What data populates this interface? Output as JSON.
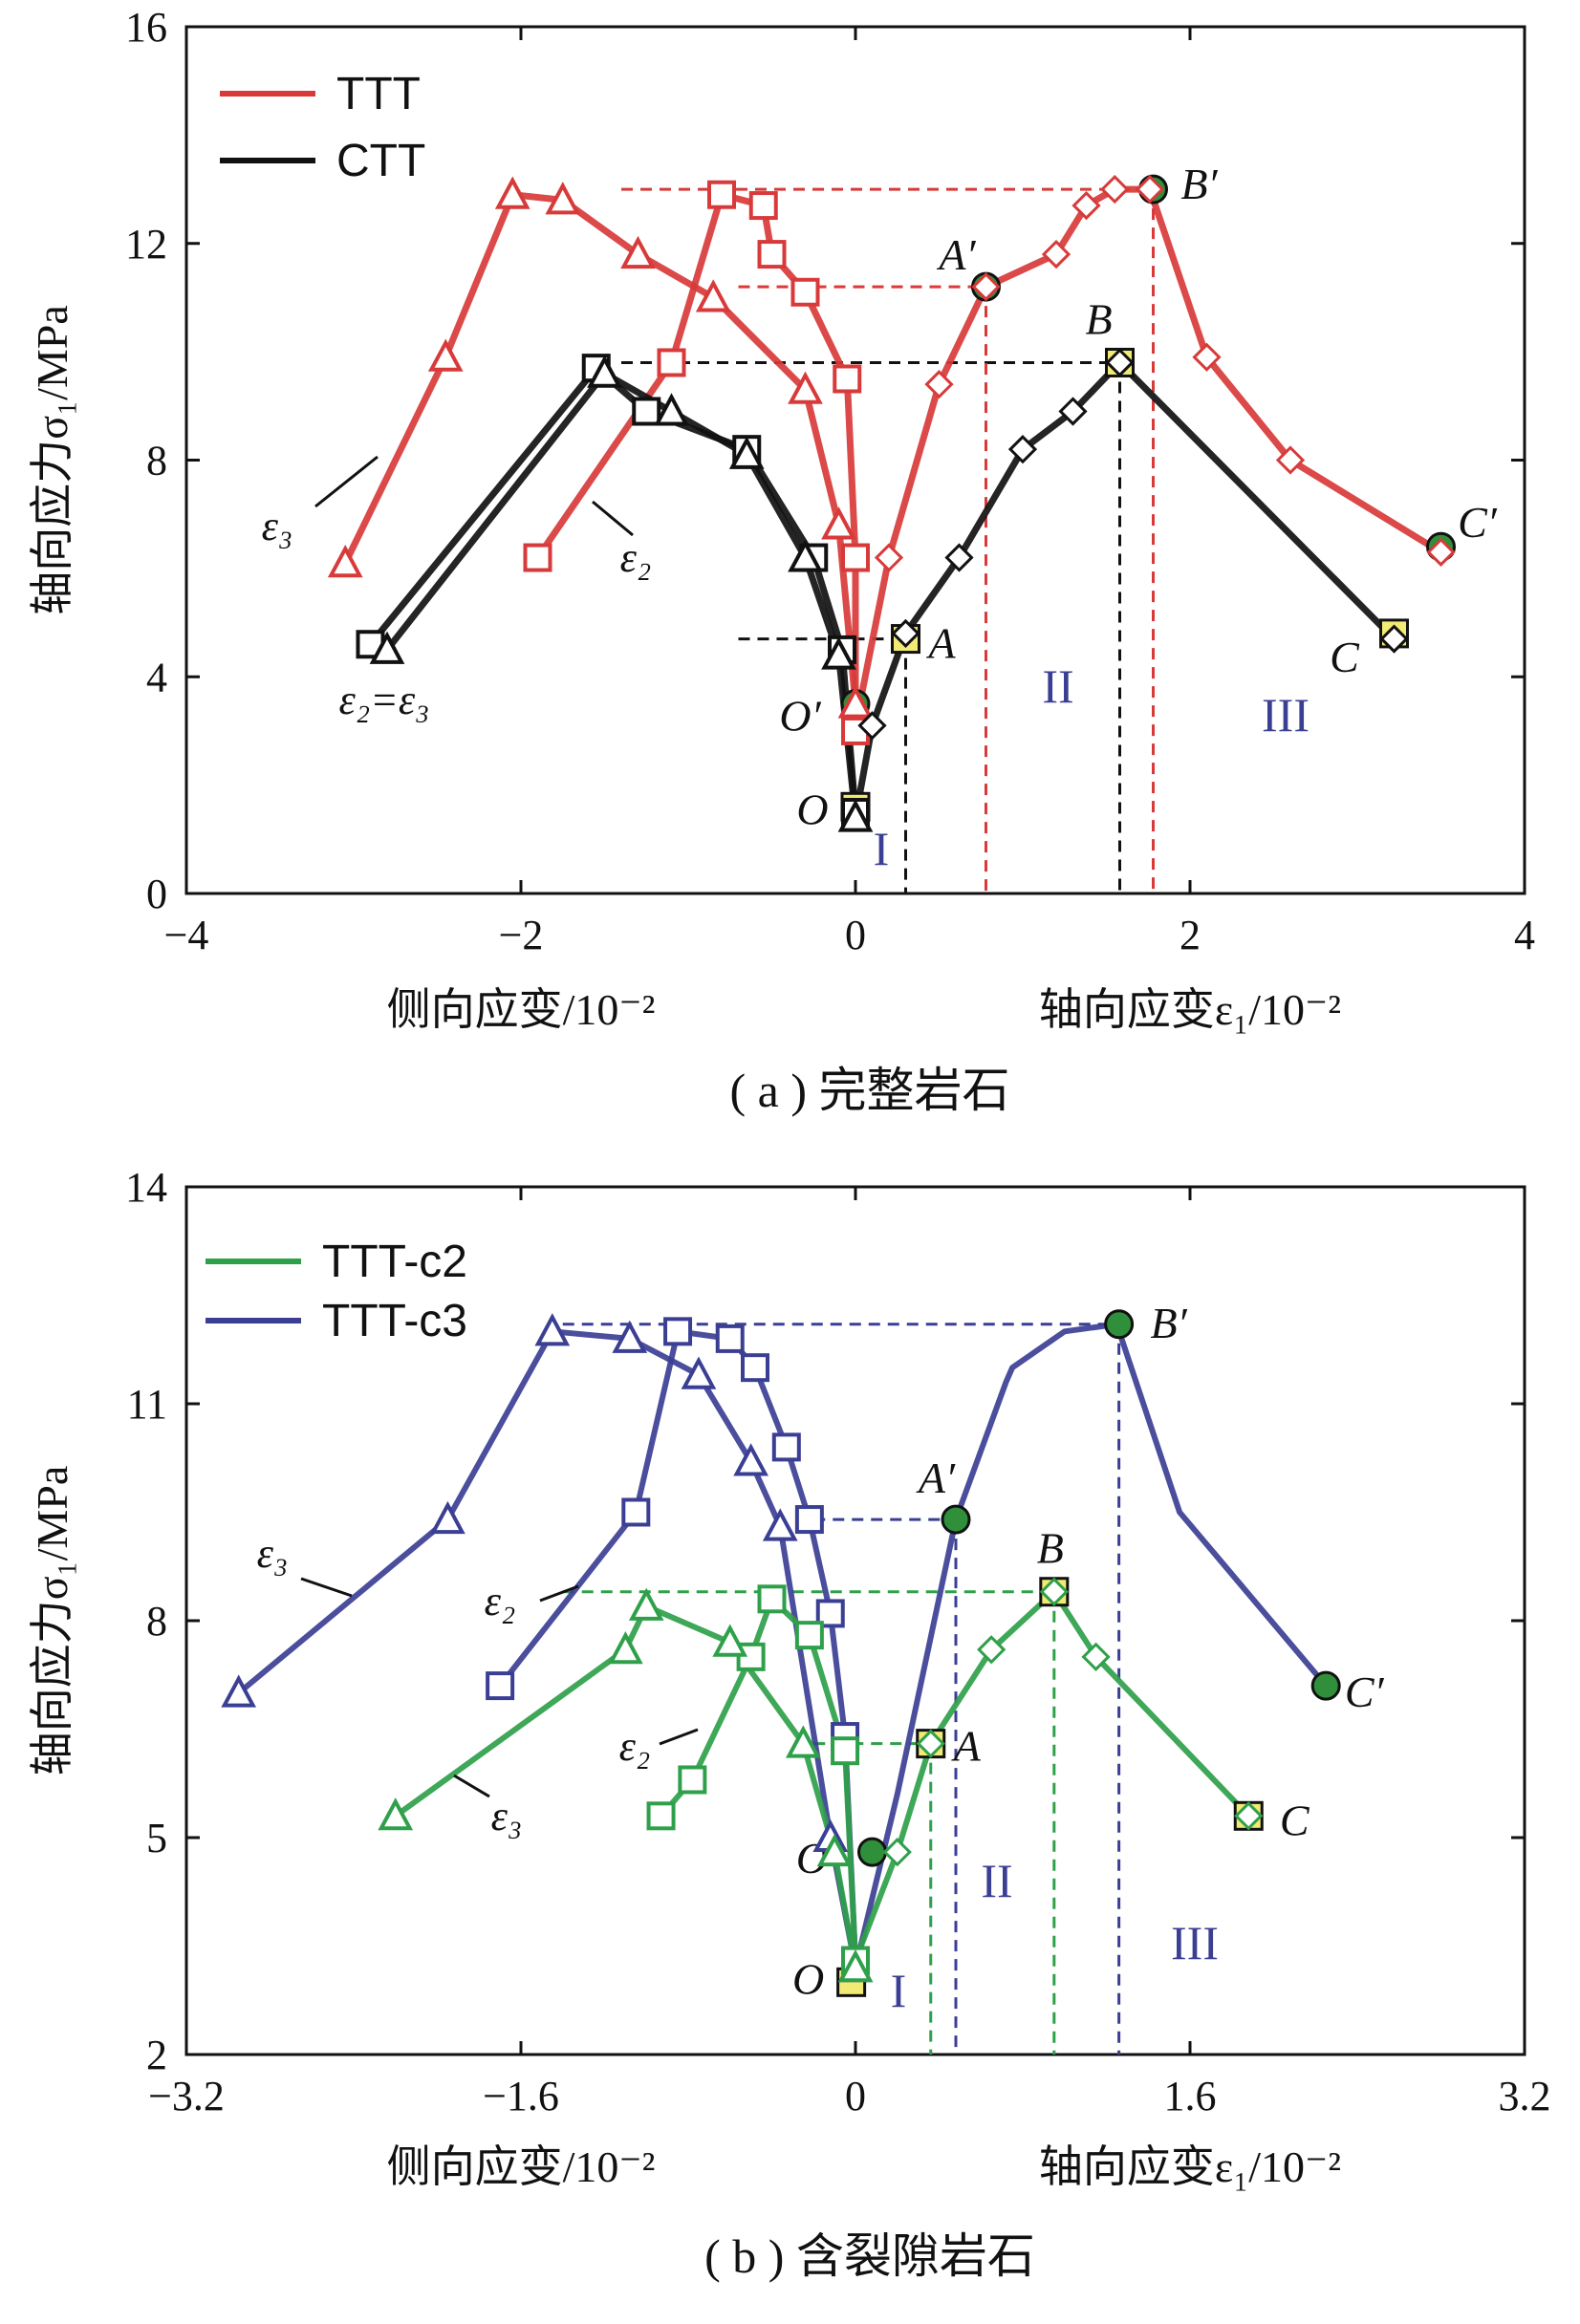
{
  "chart_data": [
    {
      "type": "line",
      "caption": "( a ) 完整岩石",
      "ylabel": "轴向应力σ₁/MPa",
      "xlabel_left": "侧向应变/10⁻²",
      "xlabel_right": "轴向应变ε₁/10⁻²",
      "xlim": [
        -4,
        4
      ],
      "ylim": [
        0,
        16
      ],
      "xticks": [
        -4,
        -2,
        0,
        2,
        4
      ],
      "yticks": [
        0,
        4,
        8,
        12,
        16
      ],
      "xtick_labels": [
        "−4",
        "−2",
        "0",
        "2",
        "4"
      ],
      "ytick_labels": [
        "0",
        "4",
        "8",
        "12",
        "16"
      ],
      "legend": [
        {
          "name": "TTT",
          "color": "#d83a3a"
        },
        {
          "name": "CTT",
          "color": "#111111"
        }
      ],
      "series": [
        {
          "name": "TTT",
          "component": "ε1",
          "color": "#d83a3a",
          "marker": "diamond",
          "x": [
            0.0,
            0.2,
            0.5,
            0.78,
            1.2,
            1.38,
            1.55,
            1.76,
            2.1,
            2.6,
            3.5
          ],
          "y": [
            3.1,
            6.2,
            9.4,
            11.2,
            11.8,
            12.7,
            13.0,
            13.0,
            9.9,
            8.0,
            6.3
          ]
        },
        {
          "name": "TTT",
          "component": "ε2",
          "color": "#d83a3a",
          "marker": "square",
          "x": [
            -1.9,
            -1.1,
            -0.8,
            -0.55,
            -0.5,
            -0.3,
            -0.05,
            0.0,
            0.0
          ],
          "y": [
            6.2,
            9.8,
            12.9,
            12.7,
            11.8,
            11.1,
            9.5,
            6.2,
            3.0
          ]
        },
        {
          "name": "TTT",
          "component": "ε3",
          "color": "#d83a3a",
          "marker": "triangle",
          "x": [
            -3.05,
            -2.45,
            -2.05,
            -1.75,
            -1.3,
            -0.85,
            -0.3,
            -0.1,
            0.0
          ],
          "y": [
            6.1,
            9.9,
            12.9,
            12.8,
            11.8,
            11.0,
            9.3,
            6.8,
            3.5
          ]
        },
        {
          "name": "CTT",
          "component": "ε1",
          "color": "#111111",
          "marker": "diamond",
          "x": [
            0.0,
            0.1,
            0.3,
            0.62,
            1.0,
            1.3,
            1.58,
            3.22
          ],
          "y": [
            1.4,
            3.1,
            4.8,
            6.2,
            8.2,
            8.9,
            9.8,
            4.7
          ]
        },
        {
          "name": "CTT",
          "component": "ε2",
          "color": "#111111",
          "marker": "square",
          "x": [
            -2.9,
            -1.55,
            -1.25,
            -0.65,
            -0.25,
            -0.08,
            0.0
          ],
          "y": [
            4.6,
            9.7,
            8.9,
            8.2,
            6.2,
            4.5,
            1.5
          ]
        },
        {
          "name": "CTT",
          "component": "ε3",
          "color": "#111111",
          "marker": "triangle",
          "x": [
            -2.8,
            -1.5,
            -1.1,
            -0.65,
            -0.3,
            -0.1,
            0.0
          ],
          "y": [
            4.5,
            9.6,
            8.9,
            8.1,
            6.2,
            4.4,
            1.4
          ]
        }
      ],
      "points": [
        {
          "label": "O",
          "x": 0.0,
          "y": 1.6,
          "style": "square-yellow"
        },
        {
          "label": "A",
          "x": 0.3,
          "y": 4.7,
          "style": "square-yellow"
        },
        {
          "label": "B",
          "x": 1.58,
          "y": 9.8,
          "style": "square-yellow"
        },
        {
          "label": "C",
          "x": 3.22,
          "y": 4.8,
          "style": "square-yellow"
        },
        {
          "label": "O′",
          "x": 0.0,
          "y": 3.5,
          "style": "circle-green"
        },
        {
          "label": "A′",
          "x": 0.78,
          "y": 11.2,
          "style": "circle-green"
        },
        {
          "label": "B′",
          "x": 1.78,
          "y": 13.0,
          "style": "circle-green"
        },
        {
          "label": "C′",
          "x": 3.5,
          "y": 6.4,
          "style": "circle-green"
        }
      ],
      "curve_labels": [
        "ε₃",
        "ε₂",
        "ε₂=ε₃"
      ],
      "regions": [
        "I",
        "II",
        "III"
      ]
    },
    {
      "type": "line",
      "caption": "( b ) 含裂隙岩石",
      "ylabel": "轴向应力σ₁/MPa",
      "xlabel_left": "侧向应变/10⁻²",
      "xlabel_right": "轴向应变ε₁/10⁻²",
      "xlim": [
        -3.2,
        3.2
      ],
      "ylim": [
        2,
        14
      ],
      "xticks": [
        -3.2,
        -1.6,
        0,
        1.6,
        3.2
      ],
      "yticks": [
        2,
        5,
        8,
        11,
        14
      ],
      "xtick_labels": [
        "−3.2",
        "−1.6",
        "0",
        "1.6",
        "3.2"
      ],
      "ytick_labels": [
        "2",
        "5",
        "8",
        "11",
        "14"
      ],
      "legend": [
        {
          "name": "TTT-c2",
          "color": "#2fa04a"
        },
        {
          "name": "TTT-c3",
          "color": "#3b3f94"
        }
      ],
      "series": [
        {
          "name": "TTT-c3",
          "component": "ε1",
          "color": "#3b3f94",
          "marker": "none",
          "x": [
            0.0,
            0.2,
            0.48,
            0.72,
            0.75,
            1.0,
            1.25,
            1.55,
            2.25
          ],
          "y": [
            3.2,
            5.6,
            9.4,
            11.3,
            11.5,
            12.0,
            12.1,
            9.5,
            7.1
          ]
        },
        {
          "name": "TTT-c3",
          "component": "ε2",
          "color": "#3b3f94",
          "marker": "square",
          "x": [
            -1.7,
            -1.05,
            -0.85,
            -0.6,
            -0.48,
            -0.33,
            -0.22,
            -0.12,
            -0.05,
            0.0
          ],
          "y": [
            7.1,
            9.5,
            12.0,
            11.9,
            11.5,
            10.4,
            9.4,
            8.1,
            6.4,
            3.3
          ]
        },
        {
          "name": "TTT-c3",
          "component": "ε3",
          "color": "#3b3f94",
          "marker": "triangle",
          "x": [
            -2.95,
            -1.95,
            -1.45,
            -1.08,
            -0.75,
            -0.5,
            -0.36,
            -0.12,
            0.0
          ],
          "y": [
            7.0,
            9.4,
            12.0,
            11.9,
            11.4,
            10.2,
            9.3,
            5.0,
            3.2
          ]
        },
        {
          "name": "TTT-c2",
          "component": "ε1",
          "color": "#2fa04a",
          "marker": "diamond",
          "x": [
            0.0,
            0.2,
            0.36,
            0.65,
            0.95,
            1.15,
            1.88
          ],
          "y": [
            3.3,
            4.8,
            6.3,
            7.6,
            8.4,
            7.5,
            5.3
          ]
        },
        {
          "name": "TTT-c2",
          "component": "ε2",
          "color": "#2fa04a",
          "marker": "square",
          "x": [
            -0.93,
            -0.78,
            -0.5,
            -0.4,
            -0.22,
            -0.05,
            0.0
          ],
          "y": [
            5.3,
            5.8,
            7.5,
            8.3,
            7.8,
            6.2,
            3.3
          ]
        },
        {
          "name": "TTT-c2",
          "component": "ε3",
          "color": "#2fa04a",
          "marker": "triangle",
          "x": [
            -2.2,
            -1.1,
            -1.0,
            -0.6,
            -0.25,
            -0.1,
            0.0
          ],
          "y": [
            5.3,
            7.6,
            8.2,
            7.7,
            6.3,
            4.8,
            3.2
          ]
        }
      ],
      "points": [
        {
          "label": "O",
          "x": -0.02,
          "y": 3.0,
          "style": "square-yellow"
        },
        {
          "label": "A",
          "x": 0.36,
          "y": 6.3,
          "style": "square-yellow"
        },
        {
          "label": "B",
          "x": 0.95,
          "y": 8.4,
          "style": "square-yellow"
        },
        {
          "label": "C",
          "x": 1.88,
          "y": 5.3,
          "style": "square-yellow"
        },
        {
          "label": "O′",
          "x": 0.08,
          "y": 4.8,
          "style": "circle-green"
        },
        {
          "label": "A′",
          "x": 0.48,
          "y": 9.4,
          "style": "circle-green"
        },
        {
          "label": "B′",
          "x": 1.26,
          "y": 12.1,
          "style": "circle-green"
        },
        {
          "label": "C′",
          "x": 2.25,
          "y": 7.1,
          "style": "circle-green"
        }
      ],
      "curve_labels": [
        "ε₃",
        "ε₂",
        "ε₂",
        "ε₃"
      ],
      "regions": [
        "I",
        "II",
        "III"
      ]
    }
  ]
}
